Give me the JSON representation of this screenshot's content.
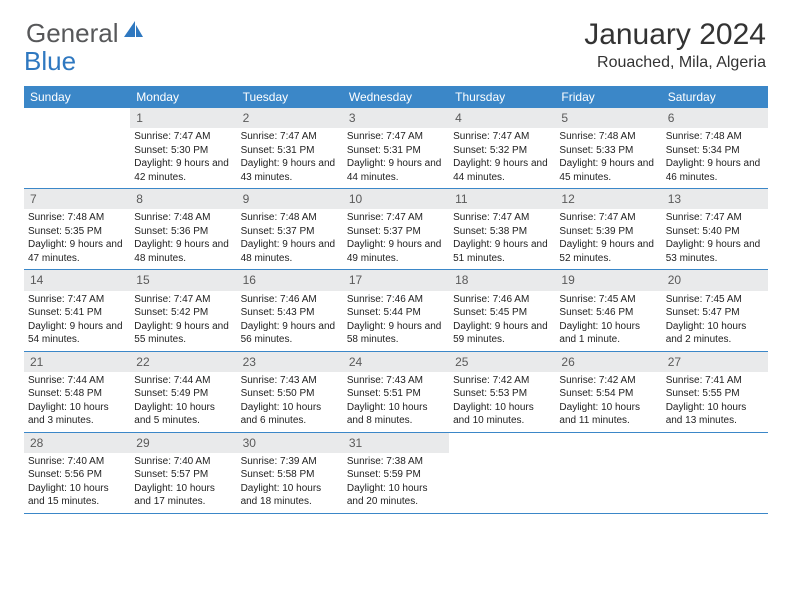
{
  "logo": {
    "general": "General",
    "blue": "Blue"
  },
  "title": "January 2024",
  "location": "Rouached, Mila, Algeria",
  "colors": {
    "header_bg": "#3b87c8",
    "daynum_bg": "#e9eaeb",
    "logo_blue": "#2f78c0",
    "logo_gray": "#57585a"
  },
  "dayNames": [
    "Sunday",
    "Monday",
    "Tuesday",
    "Wednesday",
    "Thursday",
    "Friday",
    "Saturday"
  ],
  "weeks": [
    [
      {
        "empty": true
      },
      {
        "num": "1",
        "sunrise": "Sunrise: 7:47 AM",
        "sunset": "Sunset: 5:30 PM",
        "daylight": "Daylight: 9 hours and 42 minutes."
      },
      {
        "num": "2",
        "sunrise": "Sunrise: 7:47 AM",
        "sunset": "Sunset: 5:31 PM",
        "daylight": "Daylight: 9 hours and 43 minutes."
      },
      {
        "num": "3",
        "sunrise": "Sunrise: 7:47 AM",
        "sunset": "Sunset: 5:31 PM",
        "daylight": "Daylight: 9 hours and 44 minutes."
      },
      {
        "num": "4",
        "sunrise": "Sunrise: 7:47 AM",
        "sunset": "Sunset: 5:32 PM",
        "daylight": "Daylight: 9 hours and 44 minutes."
      },
      {
        "num": "5",
        "sunrise": "Sunrise: 7:48 AM",
        "sunset": "Sunset: 5:33 PM",
        "daylight": "Daylight: 9 hours and 45 minutes."
      },
      {
        "num": "6",
        "sunrise": "Sunrise: 7:48 AM",
        "sunset": "Sunset: 5:34 PM",
        "daylight": "Daylight: 9 hours and 46 minutes."
      }
    ],
    [
      {
        "num": "7",
        "sunrise": "Sunrise: 7:48 AM",
        "sunset": "Sunset: 5:35 PM",
        "daylight": "Daylight: 9 hours and 47 minutes."
      },
      {
        "num": "8",
        "sunrise": "Sunrise: 7:48 AM",
        "sunset": "Sunset: 5:36 PM",
        "daylight": "Daylight: 9 hours and 48 minutes."
      },
      {
        "num": "9",
        "sunrise": "Sunrise: 7:48 AM",
        "sunset": "Sunset: 5:37 PM",
        "daylight": "Daylight: 9 hours and 48 minutes."
      },
      {
        "num": "10",
        "sunrise": "Sunrise: 7:47 AM",
        "sunset": "Sunset: 5:37 PM",
        "daylight": "Daylight: 9 hours and 49 minutes."
      },
      {
        "num": "11",
        "sunrise": "Sunrise: 7:47 AM",
        "sunset": "Sunset: 5:38 PM",
        "daylight": "Daylight: 9 hours and 51 minutes."
      },
      {
        "num": "12",
        "sunrise": "Sunrise: 7:47 AM",
        "sunset": "Sunset: 5:39 PM",
        "daylight": "Daylight: 9 hours and 52 minutes."
      },
      {
        "num": "13",
        "sunrise": "Sunrise: 7:47 AM",
        "sunset": "Sunset: 5:40 PM",
        "daylight": "Daylight: 9 hours and 53 minutes."
      }
    ],
    [
      {
        "num": "14",
        "sunrise": "Sunrise: 7:47 AM",
        "sunset": "Sunset: 5:41 PM",
        "daylight": "Daylight: 9 hours and 54 minutes."
      },
      {
        "num": "15",
        "sunrise": "Sunrise: 7:47 AM",
        "sunset": "Sunset: 5:42 PM",
        "daylight": "Daylight: 9 hours and 55 minutes."
      },
      {
        "num": "16",
        "sunrise": "Sunrise: 7:46 AM",
        "sunset": "Sunset: 5:43 PM",
        "daylight": "Daylight: 9 hours and 56 minutes."
      },
      {
        "num": "17",
        "sunrise": "Sunrise: 7:46 AM",
        "sunset": "Sunset: 5:44 PM",
        "daylight": "Daylight: 9 hours and 58 minutes."
      },
      {
        "num": "18",
        "sunrise": "Sunrise: 7:46 AM",
        "sunset": "Sunset: 5:45 PM",
        "daylight": "Daylight: 9 hours and 59 minutes."
      },
      {
        "num": "19",
        "sunrise": "Sunrise: 7:45 AM",
        "sunset": "Sunset: 5:46 PM",
        "daylight": "Daylight: 10 hours and 1 minute."
      },
      {
        "num": "20",
        "sunrise": "Sunrise: 7:45 AM",
        "sunset": "Sunset: 5:47 PM",
        "daylight": "Daylight: 10 hours and 2 minutes."
      }
    ],
    [
      {
        "num": "21",
        "sunrise": "Sunrise: 7:44 AM",
        "sunset": "Sunset: 5:48 PM",
        "daylight": "Daylight: 10 hours and 3 minutes."
      },
      {
        "num": "22",
        "sunrise": "Sunrise: 7:44 AM",
        "sunset": "Sunset: 5:49 PM",
        "daylight": "Daylight: 10 hours and 5 minutes."
      },
      {
        "num": "23",
        "sunrise": "Sunrise: 7:43 AM",
        "sunset": "Sunset: 5:50 PM",
        "daylight": "Daylight: 10 hours and 6 minutes."
      },
      {
        "num": "24",
        "sunrise": "Sunrise: 7:43 AM",
        "sunset": "Sunset: 5:51 PM",
        "daylight": "Daylight: 10 hours and 8 minutes."
      },
      {
        "num": "25",
        "sunrise": "Sunrise: 7:42 AM",
        "sunset": "Sunset: 5:53 PM",
        "daylight": "Daylight: 10 hours and 10 minutes."
      },
      {
        "num": "26",
        "sunrise": "Sunrise: 7:42 AM",
        "sunset": "Sunset: 5:54 PM",
        "daylight": "Daylight: 10 hours and 11 minutes."
      },
      {
        "num": "27",
        "sunrise": "Sunrise: 7:41 AM",
        "sunset": "Sunset: 5:55 PM",
        "daylight": "Daylight: 10 hours and 13 minutes."
      }
    ],
    [
      {
        "num": "28",
        "sunrise": "Sunrise: 7:40 AM",
        "sunset": "Sunset: 5:56 PM",
        "daylight": "Daylight: 10 hours and 15 minutes."
      },
      {
        "num": "29",
        "sunrise": "Sunrise: 7:40 AM",
        "sunset": "Sunset: 5:57 PM",
        "daylight": "Daylight: 10 hours and 17 minutes."
      },
      {
        "num": "30",
        "sunrise": "Sunrise: 7:39 AM",
        "sunset": "Sunset: 5:58 PM",
        "daylight": "Daylight: 10 hours and 18 minutes."
      },
      {
        "num": "31",
        "sunrise": "Sunrise: 7:38 AM",
        "sunset": "Sunset: 5:59 PM",
        "daylight": "Daylight: 10 hours and 20 minutes."
      },
      {
        "empty": true
      },
      {
        "empty": true
      },
      {
        "empty": true
      }
    ]
  ]
}
